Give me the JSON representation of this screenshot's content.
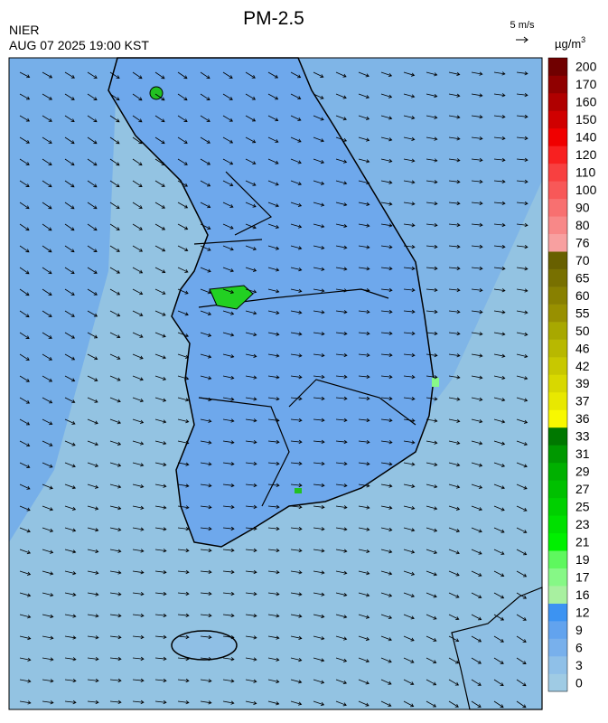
{
  "header": {
    "title": "PM-2.5",
    "source": "NIER",
    "datetime": "AUG 07 2025 19:00 KST",
    "wind_scale": "5 m/s"
  },
  "colorbar": {
    "unit": "µg/m",
    "unit_exponent": "3",
    "levels": [
      {
        "label": 0,
        "color": "#9fcbe4"
      },
      {
        "label": 3,
        "color": "#8fc0e8"
      },
      {
        "label": 6,
        "color": "#78b0ec"
      },
      {
        "label": 9,
        "color": "#62a3ee"
      },
      {
        "label": 12,
        "color": "#3c93f2"
      },
      {
        "label": 16,
        "color": "#a8f0a0"
      },
      {
        "label": 17,
        "color": "#86f886"
      },
      {
        "label": 19,
        "color": "#5ef85e"
      },
      {
        "label": 21,
        "color": "#00f000"
      },
      {
        "label": 23,
        "color": "#00e000"
      },
      {
        "label": 25,
        "color": "#00d000"
      },
      {
        "label": 27,
        "color": "#00c000"
      },
      {
        "label": 29,
        "color": "#00b000"
      },
      {
        "label": 31,
        "color": "#009800"
      },
      {
        "label": 33,
        "color": "#007800"
      },
      {
        "label": 36,
        "color": "#f8f800"
      },
      {
        "label": 37,
        "color": "#e8e800"
      },
      {
        "label": 39,
        "color": "#d8d800"
      },
      {
        "label": 42,
        "color": "#c8c800"
      },
      {
        "label": 46,
        "color": "#b8b800"
      },
      {
        "label": 50,
        "color": "#a8a800"
      },
      {
        "label": 55,
        "color": "#989000"
      },
      {
        "label": 60,
        "color": "#888000"
      },
      {
        "label": 65,
        "color": "#787000"
      },
      {
        "label": 70,
        "color": "#686000"
      },
      {
        "label": 76,
        "color": "#f8a0a0"
      },
      {
        "label": 80,
        "color": "#f88888"
      },
      {
        "label": 90,
        "color": "#f87070"
      },
      {
        "label": 100,
        "color": "#f85858"
      },
      {
        "label": 110,
        "color": "#f84040"
      },
      {
        "label": 120,
        "color": "#f82020"
      },
      {
        "label": 140,
        "color": "#f00000"
      },
      {
        "label": 150,
        "color": "#d00000"
      },
      {
        "label": 160,
        "color": "#b00000"
      },
      {
        "label": 170,
        "color": "#900000"
      },
      {
        "label": 200,
        "color": "#700000"
      }
    ]
  }
}
